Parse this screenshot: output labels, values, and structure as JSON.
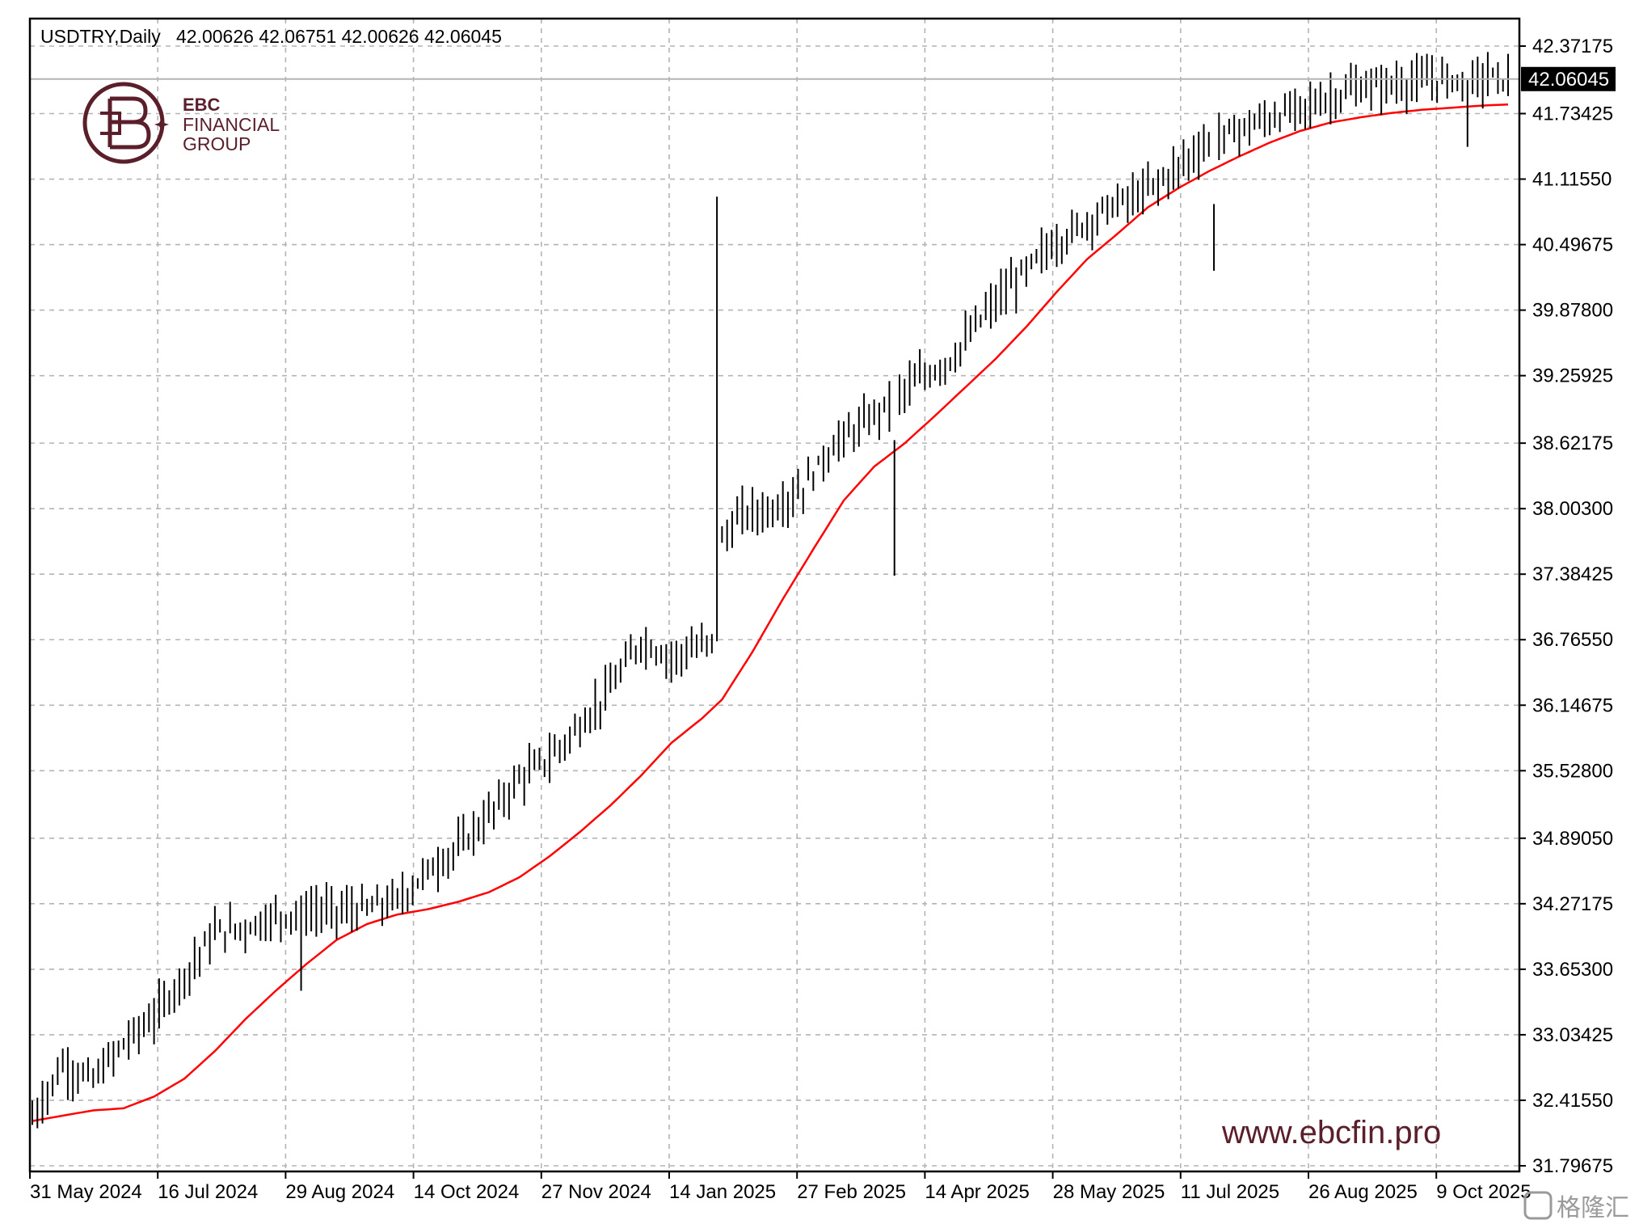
{
  "header": {
    "symbol_label": "USDTRY,Daily",
    "ohlc_label": "42.00626 42.06751 42.00626 42.06045"
  },
  "logo": {
    "line1": "EBC",
    "line2": "FINANCIAL",
    "line3": "GROUP"
  },
  "watermark": "www.ebcfin.pro",
  "corner_badge": "格隆汇",
  "colors": {
    "bars": "#000000",
    "moving_average": "#ff0000",
    "grid": "#b4b4b4",
    "brand": "#5a1f2b"
  },
  "chart_data": {
    "type": "ohlc-bar",
    "symbol": "USDTRY",
    "timeframe": "Daily",
    "current_price": 42.06045,
    "current_price_label": "42.06045",
    "ylim": [
      31.75,
      42.5
    ],
    "y_ticks": [
      "42.37175",
      "41.73425",
      "41.11550",
      "40.49675",
      "39.87800",
      "39.25925",
      "38.62175",
      "38.00300",
      "37.38425",
      "36.76550",
      "36.14675",
      "35.52800",
      "34.89050",
      "34.27175",
      "33.65300",
      "33.03425",
      "32.41550",
      "31.79675"
    ],
    "x_ticks": [
      "31 May 2024",
      "16 Jul 2024",
      "29 Aug 2024",
      "14 Oct 2024",
      "27 Nov 2024",
      "14 Jan 2025",
      "27 Feb 2025",
      "14 Apr 2025",
      "28 May 2025",
      "11 Jul 2025",
      "26 Aug 2025",
      "9 Oct 2025"
    ],
    "grid": true,
    "moving_average": {
      "x": [
        0,
        6,
        12,
        18,
        24,
        30,
        36,
        42,
        48,
        54,
        60,
        66,
        72,
        78,
        84,
        90,
        96,
        102,
        108,
        114,
        120,
        126,
        132,
        136,
        142,
        148,
        154,
        160,
        166,
        172,
        178,
        184,
        190,
        196,
        202,
        208,
        214,
        220,
        226,
        232,
        238,
        244,
        250,
        256,
        262,
        268,
        274,
        280,
        286,
        291
      ],
      "values": [
        32.22,
        32.27,
        32.32,
        32.34,
        32.45,
        32.62,
        32.88,
        33.18,
        33.45,
        33.7,
        33.93,
        34.08,
        34.17,
        34.22,
        34.29,
        34.38,
        34.52,
        34.72,
        34.95,
        35.2,
        35.48,
        35.79,
        36.02,
        36.2,
        36.65,
        37.15,
        37.62,
        38.08,
        38.4,
        38.62,
        38.88,
        39.15,
        39.42,
        39.72,
        40.05,
        40.36,
        40.6,
        40.85,
        41.03,
        41.19,
        41.33,
        41.46,
        41.57,
        41.65,
        41.7,
        41.74,
        41.77,
        41.79,
        41.81,
        41.82
      ]
    },
    "price_anchors": {
      "x": [
        0,
        6,
        12,
        18,
        24,
        30,
        36,
        42,
        48,
        54,
        60,
        66,
        72,
        78,
        84,
        90,
        96,
        102,
        108,
        114,
        120,
        126,
        132,
        135,
        136,
        140,
        146,
        152,
        158,
        164,
        170,
        176,
        182,
        188,
        194,
        200,
        206,
        212,
        218,
        224,
        230,
        236,
        242,
        248,
        254,
        260,
        266,
        272,
        278,
        284,
        288,
        291
      ],
      "values": [
        32.25,
        32.75,
        32.6,
        32.95,
        33.2,
        33.6,
        34.0,
        34.05,
        34.15,
        34.2,
        34.2,
        34.22,
        34.3,
        34.58,
        34.8,
        35.1,
        35.45,
        35.65,
        35.95,
        36.3,
        36.75,
        36.6,
        36.7,
        36.75,
        37.7,
        37.95,
        38.0,
        38.2,
        38.6,
        38.8,
        39.05,
        39.25,
        39.45,
        39.85,
        40.15,
        40.45,
        40.65,
        40.85,
        40.95,
        41.15,
        41.4,
        41.55,
        41.65,
        41.75,
        41.85,
        41.95,
        42.0,
        42.02,
        42.06,
        42.06,
        42.08,
        42.06
      ]
    },
    "spikes": [
      {
        "x": 135,
        "high": 40.95,
        "low": 36.75
      },
      {
        "x": 170,
        "high": 38.65,
        "low": 37.37
      },
      {
        "x": 53,
        "high": 34.35,
        "low": 33.45
      },
      {
        "x": 233,
        "high": 40.88,
        "low": 40.25
      },
      {
        "x": 283,
        "high": 42.05,
        "low": 41.42
      }
    ]
  }
}
